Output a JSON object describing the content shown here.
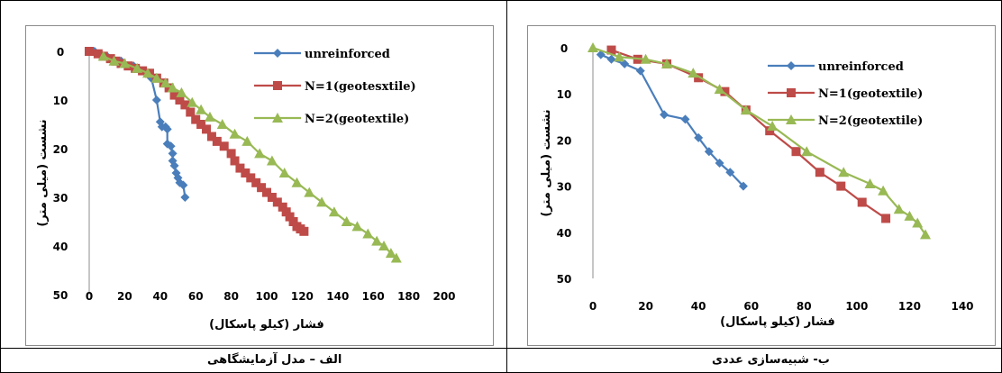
{
  "captions": {
    "left": "الف – مدل آزمایشگاهی",
    "right": "ب- شبیه‌سازی عددی"
  },
  "chart_data": [
    {
      "type": "line",
      "xlabel": "فشار (کیلو پاسکال)",
      "ylabel": "نشست (میلی متر)",
      "xlim": [
        0,
        200
      ],
      "ylim": [
        0,
        50
      ],
      "x_ticks": [
        0,
        20,
        40,
        60,
        80,
        100,
        120,
        140,
        160,
        180,
        200
      ],
      "y_ticks": [
        0,
        10,
        20,
        30,
        40,
        50
      ],
      "y_inverted": true,
      "grid": false,
      "legend_position": "top-right",
      "series": [
        {
          "name": "unreinforced",
          "color": "#4a7ebb",
          "marker": "diamond",
          "points": [
            [
              3,
              0
            ],
            [
              10,
              1
            ],
            [
              18,
              2
            ],
            [
              25,
              3
            ],
            [
              30,
              4
            ],
            [
              35,
              5.5
            ],
            [
              38,
              10
            ],
            [
              40,
              14.5
            ],
            [
              41,
              15.5
            ],
            [
              43,
              15.5
            ],
            [
              44,
              16
            ],
            [
              44,
              19
            ],
            [
              46,
              19.5
            ],
            [
              47,
              21
            ],
            [
              47,
              22.5
            ],
            [
              48,
              23.5
            ],
            [
              49,
              25
            ],
            [
              50,
              26
            ],
            [
              51,
              27
            ],
            [
              53,
              27.5
            ],
            [
              54,
              30
            ]
          ]
        },
        {
          "name": "N=1(geotesxtile)",
          "color": "#be4b48",
          "marker": "square",
          "points": [
            [
              0,
              0
            ],
            [
              5,
              0.5
            ],
            [
              8,
              1
            ],
            [
              12,
              1.5
            ],
            [
              15,
              2
            ],
            [
              18,
              2.5
            ],
            [
              22,
              3
            ],
            [
              26,
              3.5
            ],
            [
              30,
              4
            ],
            [
              34,
              4.5
            ],
            [
              38,
              5.5
            ],
            [
              42,
              6.5
            ],
            [
              45,
              7.5
            ],
            [
              48,
              9
            ],
            [
              51,
              10
            ],
            [
              54,
              11
            ],
            [
              57,
              12.5
            ],
            [
              60,
              14
            ],
            [
              63,
              15
            ],
            [
              66,
              16
            ],
            [
              69,
              17.5
            ],
            [
              72,
              18.5
            ],
            [
              76,
              19.5
            ],
            [
              80,
              21
            ],
            [
              82,
              22.5
            ],
            [
              85,
              24
            ],
            [
              88,
              25
            ],
            [
              91,
              26
            ],
            [
              94,
              27
            ],
            [
              97,
              28
            ],
            [
              100,
              29
            ],
            [
              103,
              30
            ],
            [
              106,
              31
            ],
            [
              109,
              32
            ],
            [
              111,
              33
            ],
            [
              113,
              34
            ],
            [
              115,
              35
            ],
            [
              117,
              36
            ],
            [
              119,
              36.5
            ],
            [
              121,
              37
            ]
          ]
        },
        {
          "name": "N=2(geotextile)",
          "color": "#98b954",
          "marker": "triangle",
          "points": [
            [
              8,
              1
            ],
            [
              14,
              2
            ],
            [
              20,
              2.5
            ],
            [
              27,
              3.5
            ],
            [
              33,
              4.5
            ],
            [
              38,
              5.5
            ],
            [
              43,
              6.5
            ],
            [
              47,
              7.5
            ],
            [
              52,
              8.5
            ],
            [
              58,
              10.5
            ],
            [
              63,
              12
            ],
            [
              68,
              13.5
            ],
            [
              75,
              15
            ],
            [
              82,
              17
            ],
            [
              89,
              18.5
            ],
            [
              96,
              21
            ],
            [
              103,
              22.5
            ],
            [
              110,
              25
            ],
            [
              117,
              27
            ],
            [
              124,
              29
            ],
            [
              131,
              31
            ],
            [
              138,
              33
            ],
            [
              145,
              35
            ],
            [
              151,
              36
            ],
            [
              157,
              37.5
            ],
            [
              162,
              39
            ],
            [
              166,
              40
            ],
            [
              170,
              41.5
            ],
            [
              173,
              42.5
            ]
          ]
        }
      ]
    },
    {
      "type": "line",
      "xlabel": "فشار (کیلو پاسکال)",
      "ylabel": "نشست (میلی متر)",
      "xlim": [
        0,
        140
      ],
      "ylim": [
        0,
        50
      ],
      "x_ticks": [
        0,
        20,
        40,
        60,
        80,
        100,
        120,
        140
      ],
      "y_ticks": [
        0,
        10,
        20,
        30,
        40,
        50
      ],
      "y_inverted": true,
      "grid": false,
      "legend_position": "top-right",
      "series": [
        {
          "name": "unreinforced",
          "color": "#4a7ebb",
          "marker": "diamond",
          "points": [
            [
              3,
              1.5
            ],
            [
              7,
              2.5
            ],
            [
              12,
              3.5
            ],
            [
              18,
              5
            ],
            [
              27,
              14.5
            ],
            [
              35,
              15.5
            ],
            [
              40,
              19.5
            ],
            [
              44,
              22.5
            ],
            [
              48,
              25
            ],
            [
              52,
              27
            ],
            [
              57,
              30
            ]
          ]
        },
        {
          "name": "N=1(geotextile)",
          "color": "#be4b48",
          "marker": "square",
          "points": [
            [
              7,
              0.5
            ],
            [
              17,
              2.5
            ],
            [
              28,
              3.5
            ],
            [
              40,
              6.5
            ],
            [
              50,
              9.5
            ],
            [
              58,
              13.5
            ],
            [
              67,
              18
            ],
            [
              77,
              22.5
            ],
            [
              86,
              27
            ],
            [
              94,
              30
            ],
            [
              102,
              33.5
            ],
            [
              111,
              37
            ]
          ]
        },
        {
          "name": "N=2(geotextile)",
          "color": "#98b954",
          "marker": "triangle",
          "points": [
            [
              0,
              0
            ],
            [
              10,
              2
            ],
            [
              20,
              2.5
            ],
            [
              28,
              3.5
            ],
            [
              38,
              5.5
            ],
            [
              48,
              9
            ],
            [
              58,
              13.5
            ],
            [
              68,
              17
            ],
            [
              81,
              22.5
            ],
            [
              95,
              27
            ],
            [
              105,
              29.5
            ],
            [
              110,
              31
            ],
            [
              116,
              35
            ],
            [
              120,
              36.5
            ],
            [
              123,
              38
            ],
            [
              126,
              40.5
            ]
          ]
        }
      ]
    }
  ]
}
